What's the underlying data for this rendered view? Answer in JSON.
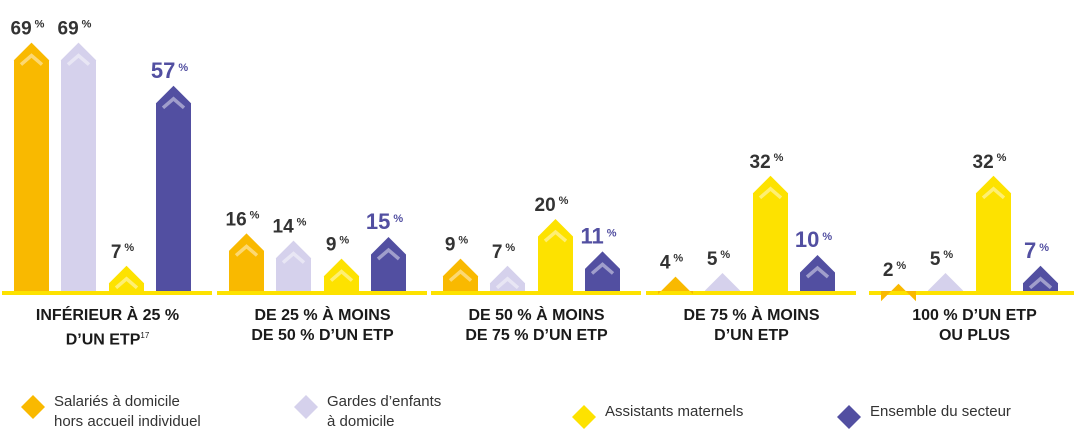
{
  "chart_data": {
    "type": "bar",
    "categories": [
      "INFÉRIEUR À 25 % D’UN ETP",
      "DE 25 % À MOINS DE 50 % D’UN ETP",
      "DE 50 % À MOINS DE 75 % D’UN ETP",
      "DE 75 % À MOINS D’UN ETP",
      "100 % D’UN ETP OU PLUS"
    ],
    "category_lines": [
      [
        "INFÉRIEUR À 25 %",
        "D’UN ETP"
      ],
      [
        "DE 25 % À MOINS",
        "DE 50 % D’UN ETP"
      ],
      [
        "DE 50 % À MOINS",
        "DE 75 % D’UN ETP"
      ],
      [
        "DE 75 % À MOINS",
        "D’UN ETP"
      ],
      [
        "100 % D’UN ETP",
        "OU PLUS"
      ]
    ],
    "footnote_mark": "17",
    "series": [
      {
        "name": "Salariés à domicile hors accueil individuel",
        "values": [
          69,
          16,
          9,
          4,
          2
        ],
        "color": "#F9B900"
      },
      {
        "name": "Gardes d’enfants à domicile",
        "values": [
          69,
          14,
          7,
          5,
          5
        ],
        "color": "#D5D1EC"
      },
      {
        "name": "Assistants maternels",
        "values": [
          7,
          9,
          20,
          32,
          32
        ],
        "color": "#FDE200"
      },
      {
        "name": "Ensemble du secteur",
        "values": [
          57,
          15,
          11,
          10,
          7
        ],
        "color": "#524FA1"
      }
    ],
    "value_suffix": "%",
    "ylim": [
      0,
      75
    ],
    "legend": "bottom",
    "grid": false
  },
  "legend": {
    "items": [
      {
        "lines": [
          "Salariés à domicile",
          "hors accueil individuel"
        ]
      },
      {
        "lines": [
          "Gardes d’enfants",
          "à domicile"
        ]
      },
      {
        "lines": [
          "Assistants maternels"
        ]
      },
      {
        "lines": [
          "Ensemble du secteur"
        ]
      }
    ]
  }
}
